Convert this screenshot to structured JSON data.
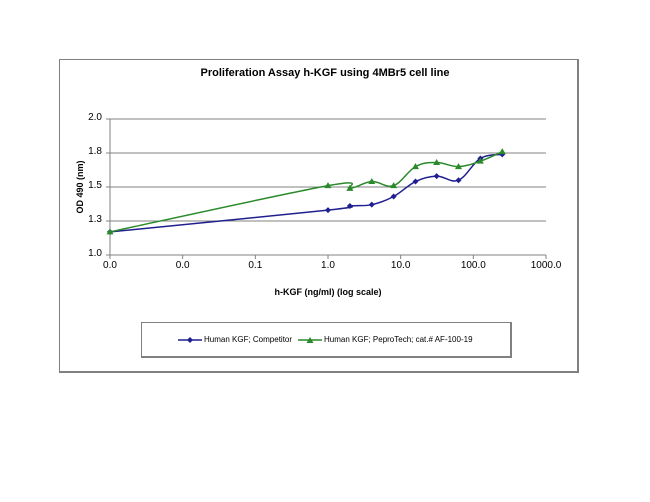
{
  "chart_data": {
    "type": "line",
    "title": "Proliferation Assay h-KGF using 4MBr5 cell line",
    "xlabel": "h-KGF (ng/ml) (log scale)",
    "ylabel": "OD 490 (nm)",
    "xscale": "log",
    "xlim": [
      0.001,
      1000
    ],
    "ylim": [
      1.0,
      2.0
    ],
    "x_tick_labels": [
      "0.0",
      "0.0",
      "0.1",
      "1.0",
      "10.0",
      "100.0",
      "1000.0"
    ],
    "x_tick_values": [
      0.001,
      0.01,
      0.1,
      1,
      10,
      100,
      1000
    ],
    "y_tick_labels": [
      "1.0",
      "1.3",
      "1.5",
      "1.8",
      "2.0"
    ],
    "y_tick_values": [
      1.0,
      1.25,
      1.5,
      1.75,
      2.0
    ],
    "grid": "horizontal",
    "legend_position": "bottom",
    "x": [
      0.001,
      1,
      2,
      4,
      8,
      16,
      31.25,
      62.5,
      125,
      250
    ],
    "series": [
      {
        "name": "Human KGF; Competitor",
        "color": "#1f1f8f",
        "marker": "diamond",
        "values": [
          1.17,
          1.33,
          1.36,
          1.37,
          1.43,
          1.54,
          1.58,
          1.55,
          1.71,
          1.74
        ]
      },
      {
        "name": "Human KGF; PeproTech; cat.# AF-100-19",
        "color": "#2a8a2a",
        "marker": "triangle",
        "values": [
          1.17,
          1.51,
          1.49,
          1.54,
          1.51,
          1.65,
          1.68,
          1.65,
          1.69,
          1.76
        ]
      }
    ]
  },
  "labels": {
    "title": "Proliferation Assay h-KGF using 4MBr5 cell line",
    "xlabel": "h-KGF (ng/ml) (log scale)",
    "ylabel": "OD 490 (nm)",
    "legend_1": "Human KGF; Competitor",
    "legend_2": "Human KGF; PeproTech; cat.# AF-100-19"
  }
}
